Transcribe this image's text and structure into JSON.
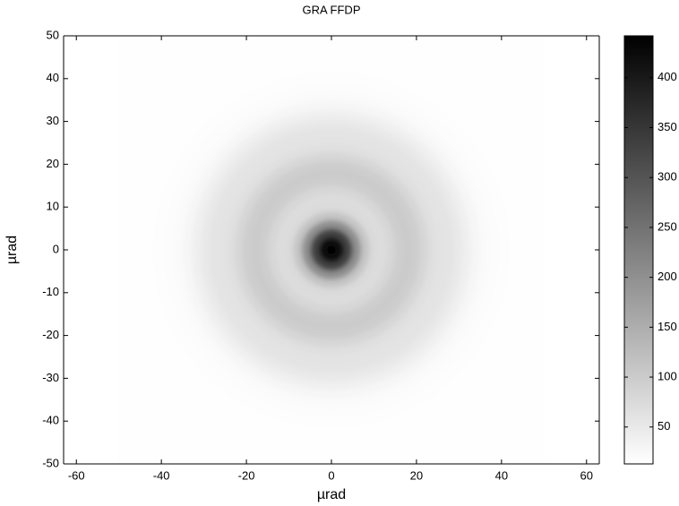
{
  "chart_data": {
    "type": "radial-heatmap",
    "title": "GRA FFDP",
    "x_label": "µrad",
    "y_label": "µrad",
    "radius": [
      0,
      2,
      4,
      6,
      8,
      10,
      12,
      14,
      16,
      18,
      20,
      22,
      24,
      26,
      28,
      30,
      32,
      34,
      36,
      38,
      40,
      44,
      48
    ],
    "values": [
      445,
      420,
      330,
      200,
      110,
      75,
      70,
      80,
      95,
      100,
      95,
      80,
      65,
      60,
      58,
      50,
      38,
      28,
      22,
      18,
      16,
      15,
      14
    ],
    "image_extent": [
      -50,
      50,
      -50,
      50
    ],
    "xlim": [
      -63,
      63
    ],
    "xticks": [
      -60,
      -40,
      -20,
      0,
      20,
      40,
      60
    ],
    "ylim": [
      -50,
      50
    ],
    "yticks": [
      -50,
      -40,
      -30,
      -20,
      -10,
      0,
      10,
      20,
      30,
      40,
      50
    ],
    "clim": [
      13,
      442
    ],
    "cticks": [
      50,
      100,
      150,
      200,
      250,
      300,
      350,
      400
    ],
    "colormap": [
      "#ffffff",
      "#000000"
    ]
  }
}
